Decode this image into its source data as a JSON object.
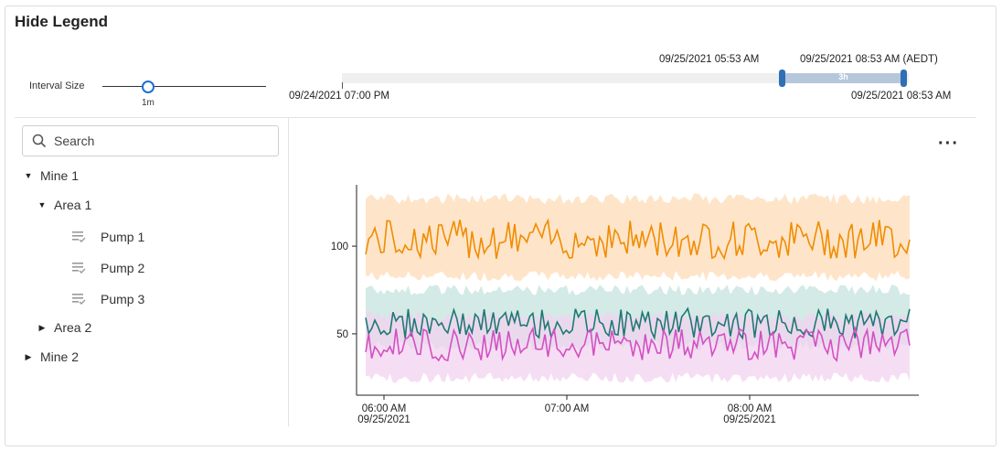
{
  "header": {
    "title": "Hide Legend"
  },
  "interval": {
    "label": "Interval Size",
    "value": "1m"
  },
  "time_range": {
    "selection_start": "09/25/2021 05:53 AM",
    "selection_end": "09/25/2021 08:53 AM (AEDT)",
    "selection_duration": "3h",
    "range_start": "09/24/2021 07:00 PM",
    "range_end": "09/25/2021 08:53 AM"
  },
  "search": {
    "placeholder": "Search",
    "value": ""
  },
  "tree": {
    "mine1": "Mine 1",
    "area1": "Area 1",
    "pump1": "Pump 1",
    "pump2": "Pump 2",
    "pump3": "Pump 3",
    "area2": "Area 2",
    "mine2": "Mine 2"
  },
  "menu": {
    "more_icon": "ellipsis-icon"
  },
  "chart_data": {
    "type": "line",
    "x_ticks": [
      {
        "time": "06:00 AM",
        "date": "09/25/2021"
      },
      {
        "time": "07:00 AM",
        "date": ""
      },
      {
        "time": "08:00 AM",
        "date": "09/25/2021"
      }
    ],
    "y_ticks": [
      50,
      100
    ],
    "y_range": [
      15,
      135
    ],
    "x_range": [
      "05:53 AM",
      "08:53 AM"
    ],
    "series": [
      {
        "color": "#f08c00",
        "band_color": "#fddcb8",
        "mean": 104,
        "band": [
          80,
          130
        ]
      },
      {
        "color": "#1f7873",
        "band_color": "#c4e3de",
        "mean": 56,
        "band": [
          40,
          78
        ]
      },
      {
        "color": "#d44fc4",
        "band_color": "#f2d3ef",
        "mean": 44,
        "band": [
          22,
          63
        ]
      }
    ]
  }
}
